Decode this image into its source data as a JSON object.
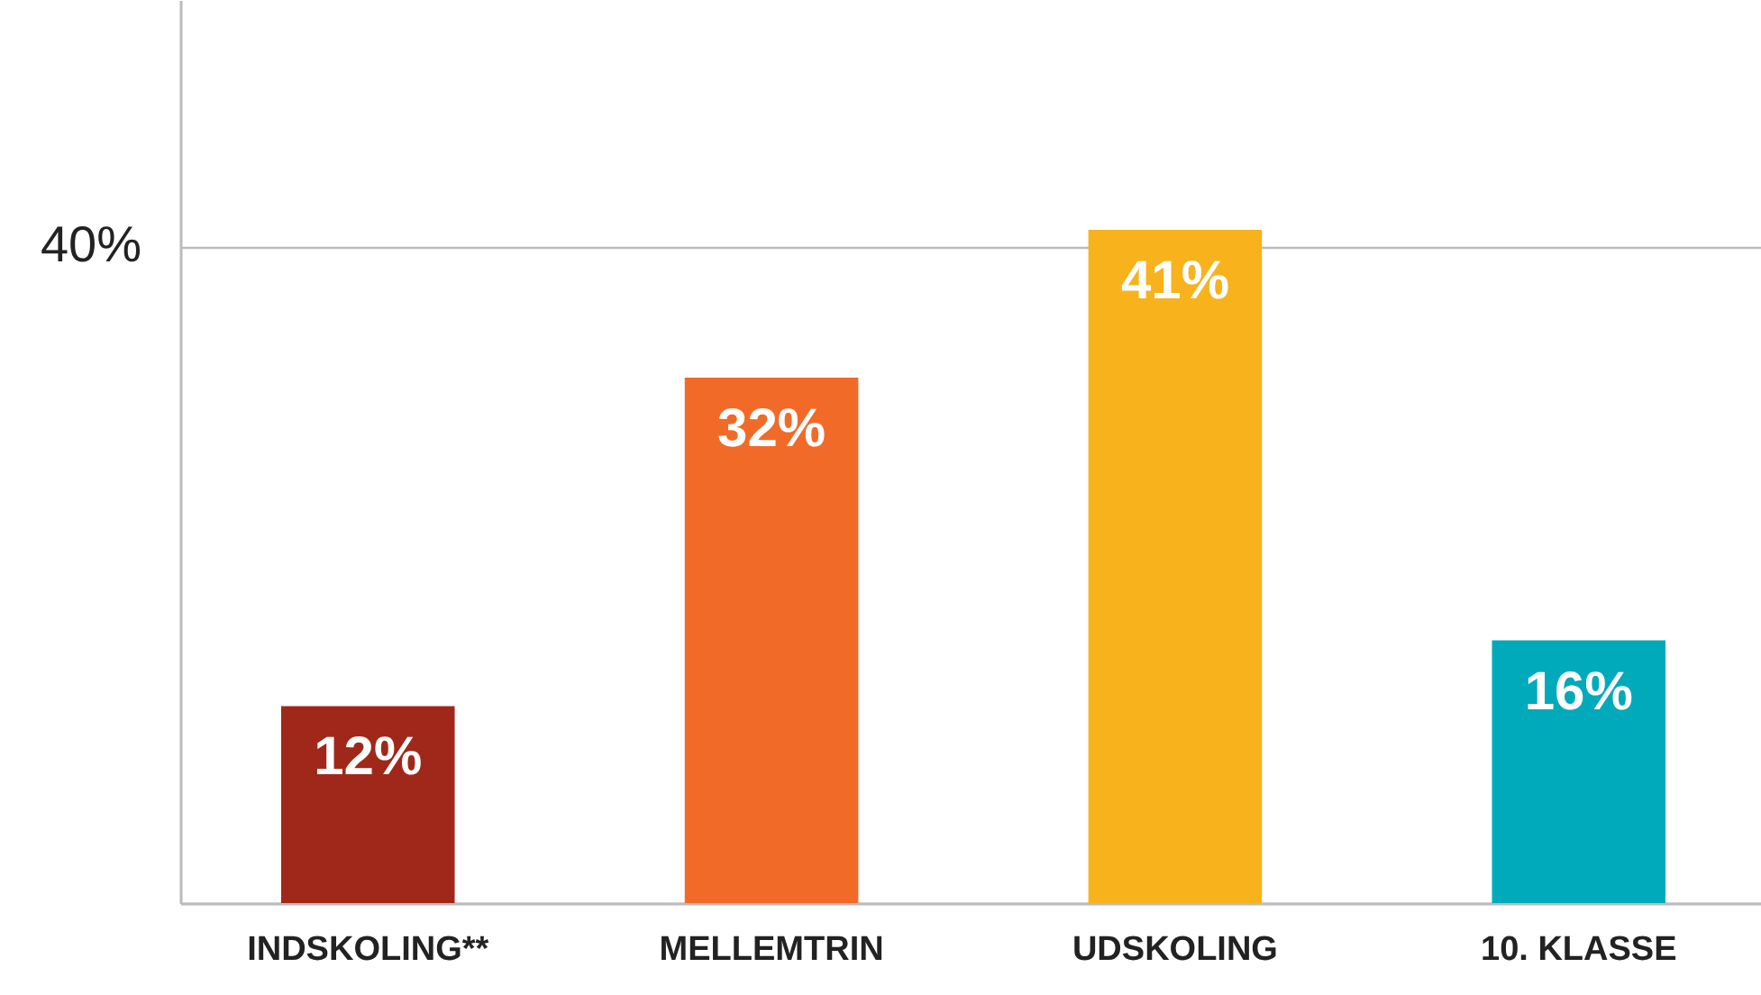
{
  "chart_data": {
    "type": "bar",
    "categories": [
      "INDSKOLING**",
      "MELLEMTRIN",
      "UDSKOLING",
      "10. KLASSE"
    ],
    "values": [
      12,
      32,
      41,
      16
    ],
    "colors": [
      "#a0281a",
      "#f26a27",
      "#f8b21b",
      "#00aabb"
    ],
    "value_labels": [
      "12%",
      "32%",
      "41%",
      "16%"
    ],
    "ylim": [
      0,
      55
    ],
    "yticks": [
      {
        "value": 0,
        "label": null
      },
      {
        "value": 40,
        "label": "40%"
      }
    ],
    "grid": "y"
  }
}
